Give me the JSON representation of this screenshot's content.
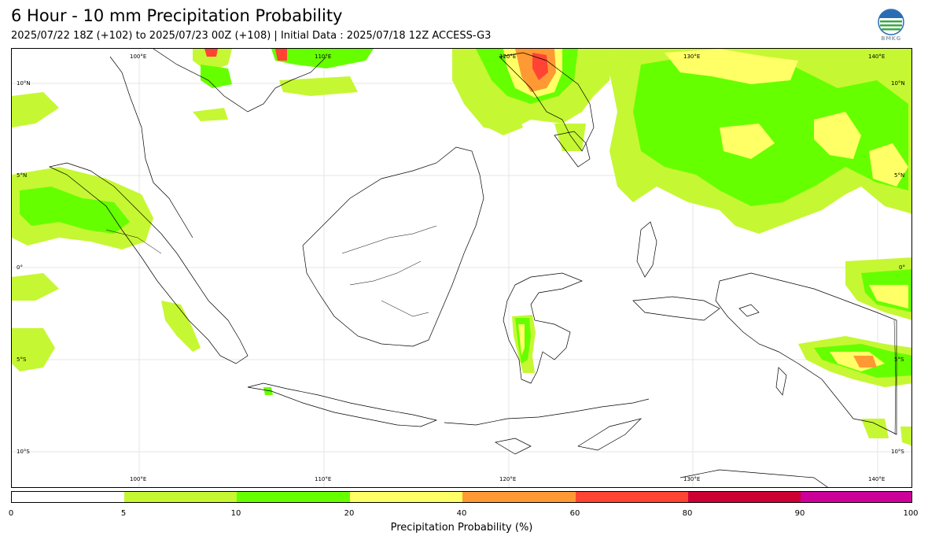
{
  "title": "6 Hour - 10 mm Precipitation Probability",
  "subtitle": "2025/07/22 18Z (+102) to 2025/07/23 00Z (+108) | Initial Data : 2025/07/18 12Z ACCESS-G3",
  "logo": {
    "icon": "bmkg-logo-icon",
    "text": "BMKG"
  },
  "map": {
    "lon_labels_top": [
      "100°E",
      "110°E",
      "120°E",
      "130°E",
      "140°E"
    ],
    "lon_labels_bottom": [
      "100°E",
      "110°E",
      "120°E",
      "130°E",
      "140°E"
    ],
    "lat_labels_left": [
      "10°N",
      "5°N",
      "0°",
      "5°S",
      "10°S"
    ],
    "lat_labels_right": [
      "10°N",
      "5°N",
      "0°",
      "5°S",
      "10°S"
    ],
    "land_color": "#ffffff",
    "coastline_color": "#000000"
  },
  "colorbar": {
    "label": "Precipitation Probability (%)",
    "ticks": [
      "0",
      "5",
      "10",
      "20",
      "40",
      "60",
      "80",
      "90",
      "100"
    ],
    "colors": [
      "#ffffff",
      "#c6f733",
      "#66ff00",
      "#ffff66",
      "#ff9933",
      "#ff4433",
      "#cc0033",
      "#cc0099"
    ]
  }
}
